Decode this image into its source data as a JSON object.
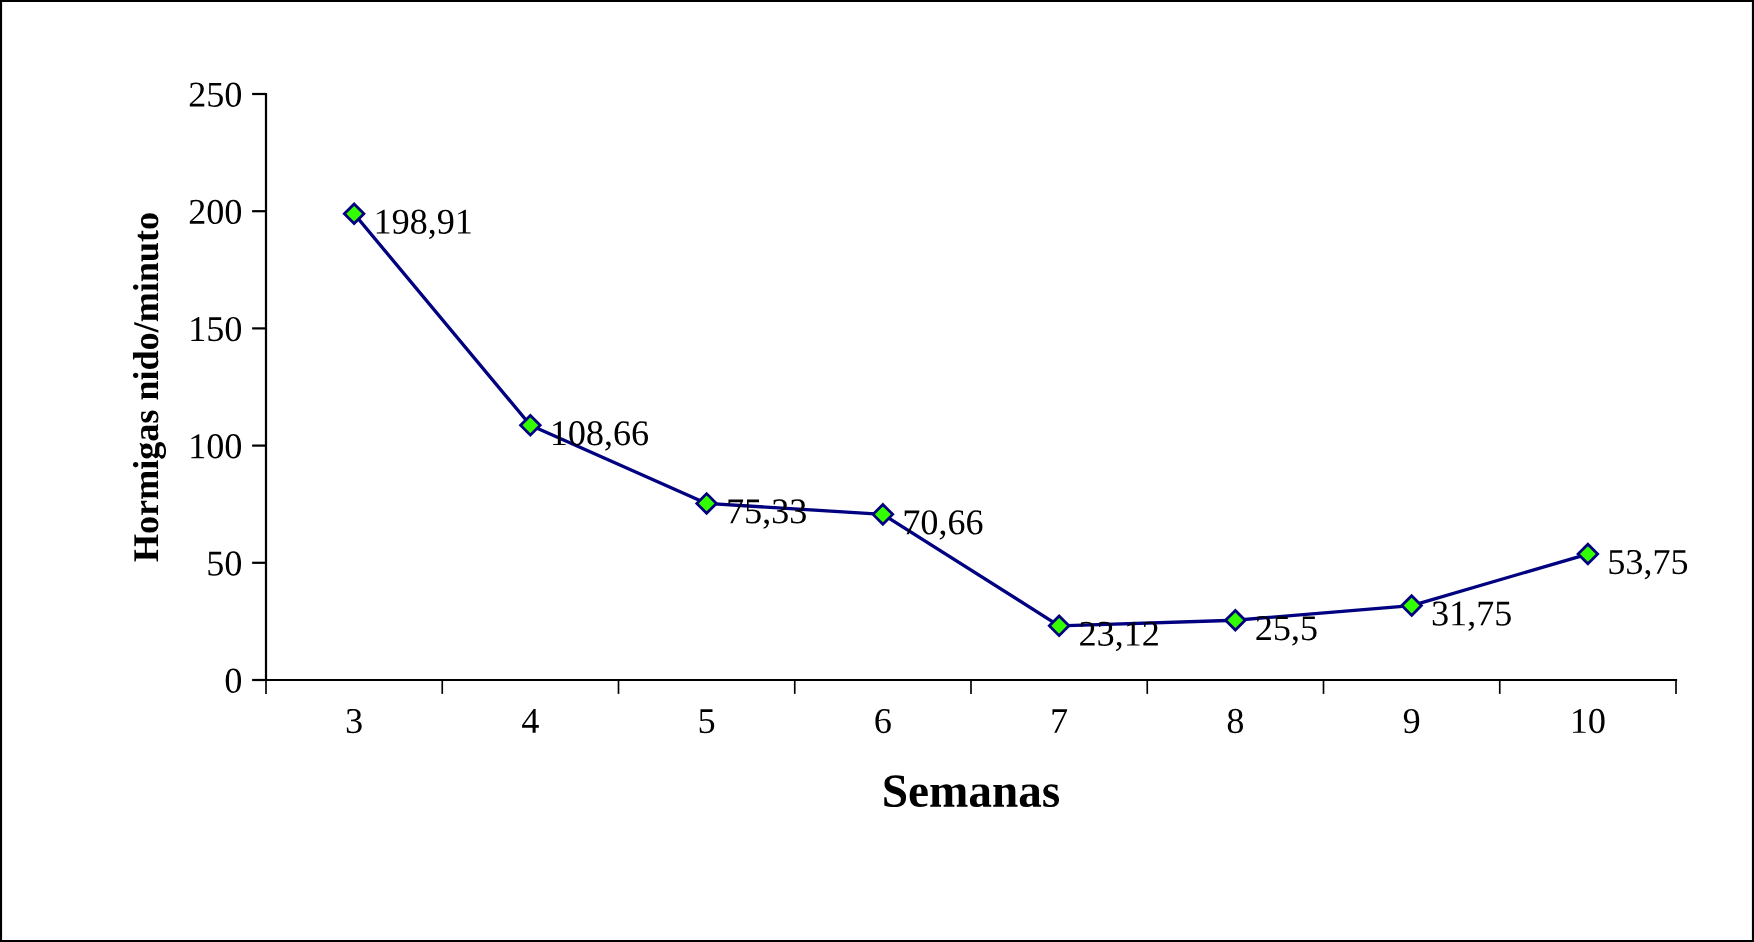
{
  "chart_data": {
    "type": "line",
    "xlabel": "Semanas",
    "ylabel": "Hormigas nido/minuto",
    "categories": [
      "3",
      "4",
      "5",
      "6",
      "7",
      "8",
      "9",
      "10"
    ],
    "series": [
      {
        "color": "#000080",
        "values": [
          198.91,
          108.66,
          75.33,
          70.66,
          23.12,
          25.5,
          31.75,
          53.75
        ],
        "value_labels": [
          "198,91",
          "108,66",
          "75,33",
          "70,66",
          "23,12",
          "25,5",
          "31,75",
          "53,75"
        ]
      }
    ],
    "ylim": [
      0,
      250
    ],
    "yticks": [
      0,
      50,
      100,
      150,
      200,
      250
    ],
    "marker": "diamond",
    "line_style": "solid"
  }
}
